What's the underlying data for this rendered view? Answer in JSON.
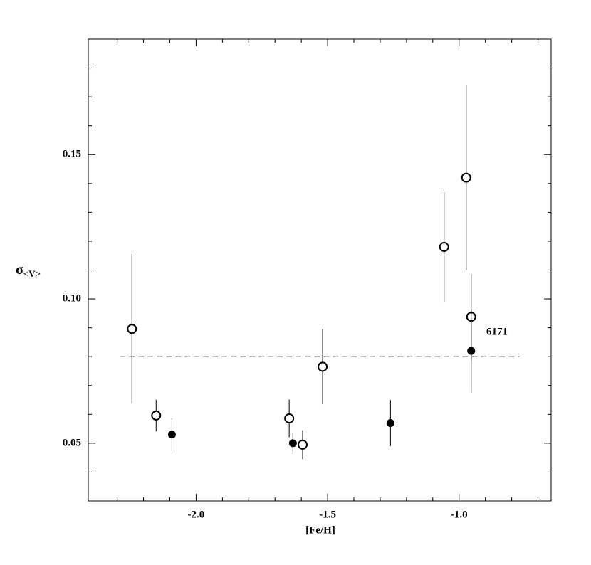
{
  "chart_data": {
    "type": "scatter",
    "xlabel": "[Fe/H]",
    "ylabel": "σ",
    "ylabel_sub": "<V>",
    "xlim": [
      -2.41,
      -0.65
    ],
    "ylim": [
      0.03,
      0.19
    ],
    "xticks": [
      {
        "value": -2.0,
        "label": "-2.0"
      },
      {
        "value": -1.5,
        "label": "-1.5"
      },
      {
        "value": -1.0,
        "label": "-1.0"
      }
    ],
    "yticks": [
      {
        "value": 0.05,
        "label": "0.05"
      },
      {
        "value": 0.1,
        "label": "0.10"
      },
      {
        "value": 0.15,
        "label": "0.15"
      }
    ],
    "xminorticks": [
      -2.3,
      -2.2,
      -2.1,
      -1.9,
      -1.8,
      -1.7,
      -1.6,
      -1.4,
      -1.3,
      -1.2,
      -1.1,
      -0.9,
      -0.8,
      -0.7
    ],
    "yminorticks": [
      0.04,
      0.06,
      0.07,
      0.08,
      0.09,
      0.11,
      0.12,
      0.13,
      0.14,
      0.16,
      0.17,
      0.18
    ],
    "series": [
      {
        "marker": "open",
        "color": "#000000",
        "x": [
          -2.244,
          -2.152,
          -1.646,
          -1.595,
          -1.519,
          -1.057,
          -0.973,
          -0.954
        ],
        "values": [
          0.0896,
          0.0596,
          0.0586,
          0.0495,
          0.0765,
          0.118,
          0.142,
          0.0938
        ],
        "errors": [
          0.026,
          0.0055,
          0.0065,
          0.005,
          0.013,
          0.019,
          0.032,
          0.015
        ]
      },
      {
        "marker": "filled",
        "color": "#000000",
        "x": [
          -2.092,
          -1.632,
          -1.261,
          -0.954
        ],
        "values": [
          0.053,
          0.05,
          0.057,
          0.082
        ],
        "errors": [
          0.0057,
          0.0037,
          0.008,
          0.0145
        ]
      }
    ],
    "hline": {
      "y": 0.08,
      "xrange": [
        -2.29,
        -0.77
      ]
    },
    "annotation": "6171"
  }
}
